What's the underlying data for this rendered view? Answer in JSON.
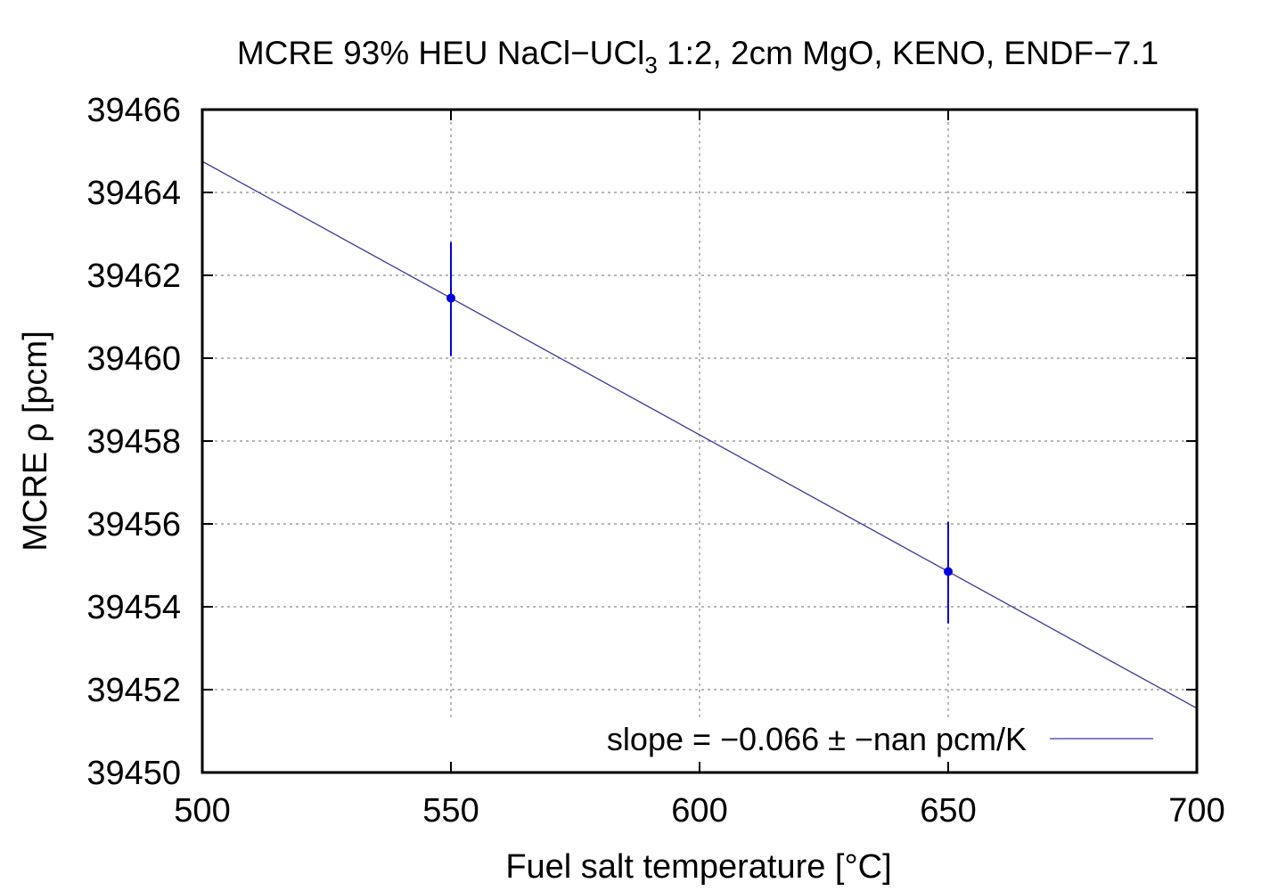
{
  "chart_data": {
    "type": "scatter",
    "title_parts": {
      "before_sub": "MCRE 93% HEU NaCl−UCl",
      "subscript": "3",
      "after_sub": " 1:2, 2cm MgO, KENO, ENDF−7.1"
    },
    "xlabel": "Fuel salt temperature [°C]",
    "ylabel": "MCRE ρ [pcm]",
    "xlim": [
      500,
      700
    ],
    "ylim": [
      39450,
      39466
    ],
    "x_ticks": [
      500,
      550,
      600,
      650,
      700
    ],
    "x_tick_labels": [
      "500",
      "550",
      "600",
      "650",
      "700"
    ],
    "y_ticks": [
      39450,
      39452,
      39454,
      39456,
      39458,
      39460,
      39462,
      39464,
      39466
    ],
    "y_tick_labels": [
      "39450",
      "39452",
      "39454",
      "39456",
      "39458",
      "39460",
      "39462",
      "39464",
      "39466"
    ],
    "grid": true,
    "legend_position": "bottom-right",
    "points": [
      {
        "x": 550,
        "y": 39461.45,
        "err_low": 39460.05,
        "err_high": 39462.8
      },
      {
        "x": 650,
        "y": 39454.85,
        "err_low": 39453.6,
        "err_high": 39456.05
      }
    ],
    "fit_line": {
      "label": "slope = −0.066 ±  −nan pcm/K",
      "x": [
        500,
        700
      ],
      "y": [
        39464.75,
        39451.55
      ]
    },
    "colors": {
      "points": "#0000e0",
      "fit_line": "#3a3aa0",
      "frame": "#000000",
      "grid": "#8c8c8c"
    }
  }
}
